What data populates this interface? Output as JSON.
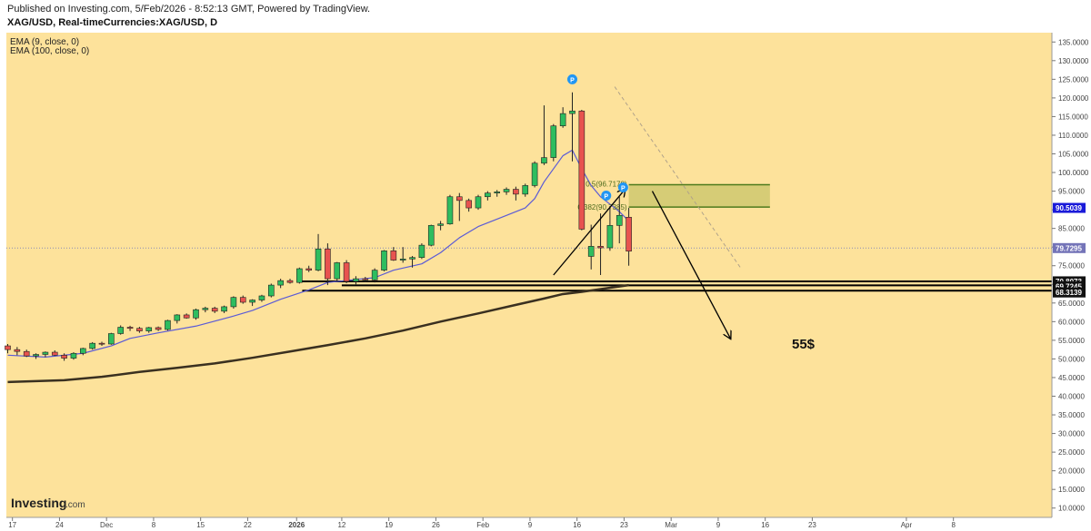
{
  "header": {
    "published": "Published on Investing.com, 5/Feb/2026 - 8:52:13 GMT, Powered by TradingView.",
    "symbol": "XAG/USD, Real-timeCurrencies:XAG/USD, D"
  },
  "indicators": [
    "EMA (9, close, 0)",
    "EMA (100, close, 0)"
  ],
  "logo": {
    "text": "Investing",
    "suffix": ".com"
  },
  "colors": {
    "background": "#fde29b",
    "bull": "#2ebd5f",
    "bear": "#e8534f",
    "ema9": "#5b5bd6",
    "ema100": "#3a3020",
    "fib_zone": "#c8c46a",
    "fib_border": "#4c7a1c",
    "pivot": "#2196f3",
    "current_price_line": "#8a8ab5"
  },
  "chart_data": {
    "type": "candlestick",
    "y_axis": {
      "ylim": [
        7.5,
        137.5
      ],
      "ticks": [
        10,
        15,
        20,
        25,
        30,
        35,
        40,
        45,
        50,
        55,
        60,
        65,
        70,
        75,
        80,
        85,
        90,
        95,
        100,
        105,
        110,
        115,
        120,
        125,
        130,
        135
      ]
    },
    "x_axis": {
      "labels": [
        {
          "text": "17",
          "i": 0.5
        },
        {
          "text": "24",
          "i": 5.5
        },
        {
          "text": "Dec",
          "i": 10.5
        },
        {
          "text": "8",
          "i": 15.5
        },
        {
          "text": "15",
          "i": 20.5
        },
        {
          "text": "22",
          "i": 25.5
        },
        {
          "text": "2026",
          "i": 30.7
        },
        {
          "text": "12",
          "i": 35.5
        },
        {
          "text": "19",
          "i": 40.5
        },
        {
          "text": "26",
          "i": 45.5
        },
        {
          "text": "Feb",
          "i": 50.5
        },
        {
          "text": "9",
          "i": 55.5
        },
        {
          "text": "16",
          "i": 60.5
        },
        {
          "text": "23",
          "i": 65.5
        },
        {
          "text": "Mar",
          "i": 70.5
        },
        {
          "text": "9",
          "i": 75.5
        },
        {
          "text": "16",
          "i": 80.5
        },
        {
          "text": "23",
          "i": 85.5
        },
        {
          "text": "Apr",
          "i": 95.5
        },
        {
          "text": "8",
          "i": 100.5
        }
      ]
    },
    "candles": [
      [
        53.5,
        54.0,
        51.5,
        52.5
      ],
      [
        52.5,
        53.2,
        51.0,
        52.0
      ],
      [
        52.0,
        52.5,
        50.5,
        50.8
      ],
      [
        50.8,
        51.5,
        50.0,
        51.2
      ],
      [
        51.2,
        52.0,
        50.5,
        51.8
      ],
      [
        51.8,
        52.3,
        50.8,
        51.0
      ],
      [
        51.0,
        51.5,
        49.5,
        50.2
      ],
      [
        50.2,
        51.8,
        49.8,
        51.5
      ],
      [
        51.5,
        53.0,
        51.0,
        52.8
      ],
      [
        52.8,
        54.5,
        52.5,
        54.2
      ],
      [
        54.2,
        54.6,
        53.5,
        54.0
      ],
      [
        54.0,
        57.0,
        53.8,
        56.8
      ],
      [
        56.8,
        59.0,
        56.5,
        58.5
      ],
      [
        58.5,
        58.9,
        57.5,
        58.2
      ],
      [
        58.2,
        58.6,
        57.0,
        57.5
      ],
      [
        57.5,
        58.6,
        57.0,
        58.4
      ],
      [
        58.4,
        58.7,
        57.5,
        57.9
      ],
      [
        57.9,
        60.5,
        57.6,
        60.3
      ],
      [
        60.3,
        62.0,
        59.5,
        61.8
      ],
      [
        61.8,
        62.2,
        60.8,
        61.0
      ],
      [
        61.0,
        63.5,
        60.5,
        63.2
      ],
      [
        63.2,
        64.0,
        62.5,
        63.6
      ],
      [
        63.6,
        64.0,
        62.3,
        62.8
      ],
      [
        62.8,
        64.3,
        62.3,
        64.0
      ],
      [
        64.0,
        66.8,
        63.5,
        66.5
      ],
      [
        66.5,
        67.0,
        64.8,
        65.2
      ],
      [
        65.2,
        66.0,
        64.2,
        65.8
      ],
      [
        65.8,
        67.2,
        65.3,
        66.9
      ],
      [
        66.9,
        70.2,
        66.5,
        69.8
      ],
      [
        69.8,
        71.5,
        69.0,
        71.0
      ],
      [
        71.0,
        71.5,
        70.2,
        70.5
      ],
      [
        70.5,
        74.5,
        70.2,
        74.2
      ],
      [
        74.2,
        75.0,
        73.3,
        73.8
      ],
      [
        73.8,
        83.5,
        73.5,
        79.5
      ],
      [
        79.5,
        81.0,
        69.8,
        71.5
      ],
      [
        71.5,
        76.0,
        70.8,
        75.8
      ],
      [
        75.8,
        76.5,
        70.3,
        70.8
      ],
      [
        70.8,
        72.2,
        70.0,
        71.5
      ],
      [
        71.5,
        72.0,
        70.6,
        71.2
      ],
      [
        71.2,
        74.3,
        70.5,
        73.8
      ],
      [
        73.8,
        79.2,
        73.5,
        79.0
      ],
      [
        79.0,
        80.0,
        76.3,
        76.5
      ],
      [
        76.5,
        80.0,
        75.8,
        76.8
      ],
      [
        76.8,
        77.6,
        74.5,
        77.2
      ],
      [
        77.2,
        81.0,
        76.8,
        80.5
      ],
      [
        80.5,
        86.0,
        80.2,
        85.8
      ],
      [
        85.8,
        87.0,
        84.5,
        86.2
      ],
      [
        86.2,
        94.0,
        86.0,
        93.5
      ],
      [
        93.5,
        94.5,
        87.0,
        92.5
      ],
      [
        92.5,
        93.0,
        89.5,
        90.5
      ],
      [
        90.5,
        94.0,
        90.0,
        93.5
      ],
      [
        93.5,
        95.0,
        92.5,
        94.5
      ],
      [
        94.5,
        95.3,
        93.5,
        94.8
      ],
      [
        94.8,
        96.0,
        94.0,
        95.5
      ],
      [
        95.5,
        96.2,
        92.5,
        94.2
      ],
      [
        94.2,
        97.0,
        93.5,
        96.5
      ],
      [
        96.5,
        103.0,
        96.0,
        102.5
      ],
      [
        102.5,
        118.0,
        102.0,
        104.0
      ],
      [
        104.0,
        113.0,
        103.0,
        112.5
      ],
      [
        112.5,
        117.5,
        112.0,
        115.8
      ],
      [
        115.8,
        121.5,
        103.0,
        116.5
      ],
      [
        116.5,
        116.8,
        84.5,
        84.8
      ],
      [
        77.5,
        86.0,
        74.0,
        80.2
      ],
      [
        80.2,
        89.0,
        72.5,
        79.8
      ],
      [
        79.8,
        91.0,
        79.0,
        85.8
      ],
      [
        85.8,
        93.5,
        81.0,
        88.5
      ],
      [
        88.0,
        90.5,
        75.0,
        78.9
      ]
    ],
    "ema9": [
      [
        0,
        51.0
      ],
      [
        4,
        50.5
      ],
      [
        8,
        51.5
      ],
      [
        11,
        53.5
      ],
      [
        13,
        55.5
      ],
      [
        16,
        57.0
      ],
      [
        20,
        58.8
      ],
      [
        24,
        61.5
      ],
      [
        26,
        63.0
      ],
      [
        29,
        66.0
      ],
      [
        32,
        68.5
      ],
      [
        34,
        70.5
      ],
      [
        37,
        71.3
      ],
      [
        39,
        71.8
      ],
      [
        41,
        73.8
      ],
      [
        44,
        75.5
      ],
      [
        46,
        78.5
      ],
      [
        48,
        82.5
      ],
      [
        50,
        85.5
      ],
      [
        53,
        88.5
      ],
      [
        55,
        90.5
      ],
      [
        56,
        93.0
      ],
      [
        57,
        97.5
      ],
      [
        58,
        101.0
      ],
      [
        59,
        104.5
      ],
      [
        60,
        106.0
      ],
      [
        61,
        101.0
      ],
      [
        62,
        96.5
      ],
      [
        63,
        93.5
      ],
      [
        64,
        91.5
      ],
      [
        65,
        89.5
      ],
      [
        66,
        87.0
      ]
    ],
    "ema100": [
      [
        0,
        43.8
      ],
      [
        6,
        44.3
      ],
      [
        10,
        45.2
      ],
      [
        14,
        46.5
      ],
      [
        18,
        47.6
      ],
      [
        22,
        48.8
      ],
      [
        26,
        50.3
      ],
      [
        30,
        52.0
      ],
      [
        34,
        53.7
      ],
      [
        38,
        55.5
      ],
      [
        42,
        57.6
      ],
      [
        46,
        60.0
      ],
      [
        50,
        62.2
      ],
      [
        54,
        64.5
      ],
      [
        57,
        66.2
      ],
      [
        59,
        67.4
      ],
      [
        61,
        68.0
      ],
      [
        66,
        69.8
      ]
    ],
    "price_tags": [
      {
        "value": 90.5039,
        "text": "90.5039",
        "bg": "#1a1ad9",
        "fg": "#ffffff"
      },
      {
        "value": 79.7295,
        "text": "79.7295",
        "bg": "#7474b8",
        "fg": "#ffffff"
      },
      {
        "value": 70.8073,
        "text": "70.8073",
        "bg": "#111111",
        "fg": "#ffffff"
      },
      {
        "value": 69.7245,
        "text": "69.7245",
        "bg": "#111111",
        "fg": "#ffffff"
      },
      {
        "value": 68.3139,
        "text": "68.3139",
        "bg": "#111111",
        "fg": "#ffffff"
      }
    ],
    "support_lines": [
      {
        "value": 70.8073,
        "from": 31.3
      },
      {
        "value": 69.7245,
        "from": 35.5
      },
      {
        "value": 68.3139,
        "from": 31.3
      }
    ],
    "current_price": 79.7295,
    "fib_zone": {
      "top": 96.7178,
      "bottom": 90.7385,
      "i0": 66.0,
      "i1": 81.0,
      "top_label": "0.5(96.7178)",
      "bottom_label": "0.382(90.7385)"
    },
    "pivots": [
      {
        "i": 60.0,
        "y": 125.0
      },
      {
        "i": 63.6,
        "y": 93.8
      },
      {
        "i": 65.4,
        "y": 96.0
      }
    ],
    "pivot_text": "P",
    "dashed_trend": [
      [
        64.5,
        123.0
      ],
      [
        78.0,
        74.0
      ]
    ],
    "arrow_up": [
      [
        58.0,
        72.5
      ],
      [
        65.6,
        95.5
      ]
    ],
    "arrow_down": [
      [
        68.5,
        95.0
      ],
      [
        76.8,
        55.5
      ]
    ],
    "target_label": "55$"
  }
}
